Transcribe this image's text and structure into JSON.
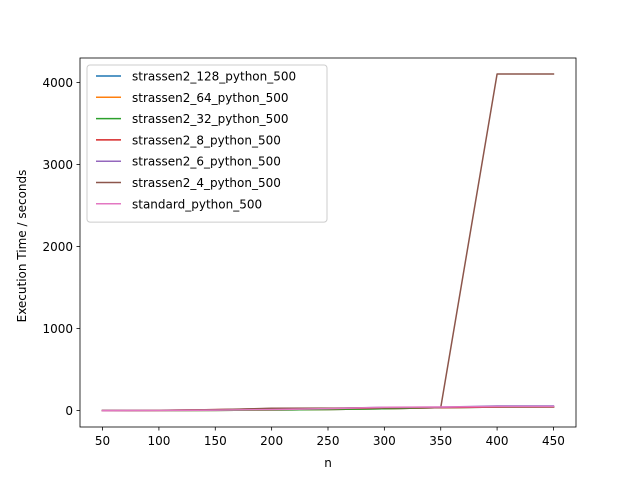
{
  "chart_data": {
    "type": "line",
    "title": "",
    "xlabel": "n",
    "ylabel": "Execution Time / seconds",
    "x": [
      50,
      100,
      150,
      200,
      250,
      300,
      350,
      400,
      450
    ],
    "xticks": [
      50,
      100,
      150,
      200,
      250,
      300,
      350,
      400,
      450
    ],
    "yticks": [
      0,
      1000,
      2000,
      3000,
      4000
    ],
    "xlim": [
      30,
      470
    ],
    "ylim": [
      -200,
      4300
    ],
    "grid": false,
    "legend_position": "upper-left",
    "series": [
      {
        "name": "strassen2_128_python_500",
        "color": "#1f77b4",
        "values": [
          0.1,
          0.9,
          2.9,
          6.8,
          13.3,
          22.9,
          36.5,
          42.1,
          43.3
        ]
      },
      {
        "name": "strassen2_64_python_500",
        "color": "#ff7f0e",
        "values": [
          0.1,
          0.9,
          2.9,
          6.8,
          13.3,
          22.9,
          36.5,
          42.1,
          43.3
        ]
      },
      {
        "name": "strassen2_32_python_500",
        "color": "#2ca02c",
        "values": [
          0.1,
          0.9,
          2.9,
          6.8,
          13.3,
          22.9,
          36.5,
          42.1,
          43.3
        ]
      },
      {
        "name": "strassen2_8_python_500",
        "color": "#d62728",
        "values": [
          0.4,
          3.4,
          11.2,
          23.2,
          24.5,
          33.1,
          36.6,
          44.6,
          45.1
        ]
      },
      {
        "name": "strassen2_6_python_500",
        "color": "#9467bd",
        "values": [
          1.6,
          3.5,
          6.7,
          26.1,
          26.5,
          39.9,
          42.8,
          55.7,
          56.3
        ]
      },
      {
        "name": "strassen2_4_python_500",
        "color": "#8c564b",
        "values": [
          0.6,
          4.3,
          12.3,
          27.9,
          29.5,
          34.3,
          36.9,
          4105.0,
          4105.0
        ]
      },
      {
        "name": "standard_python_500",
        "color": "#e377c2",
        "values": [
          0.2,
          1.5,
          5.1,
          12.1,
          23.6,
          40.7,
          44.0,
          48.1,
          48.5
        ]
      }
    ]
  }
}
